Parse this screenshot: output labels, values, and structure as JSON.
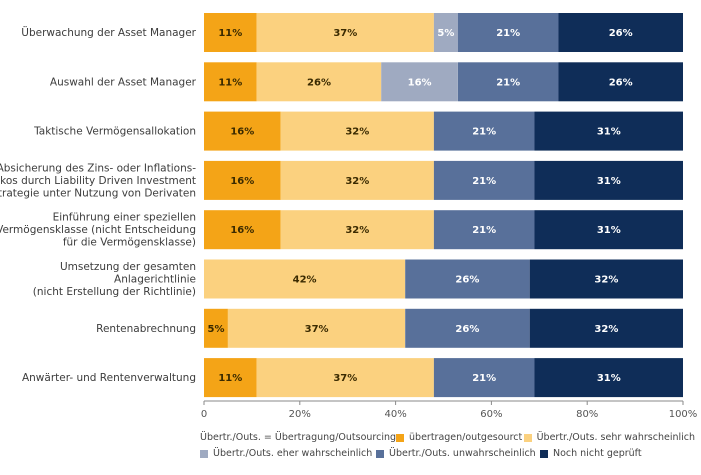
{
  "chart_data": {
    "type": "bar",
    "orientation": "horizontal",
    "stacked": true,
    "xlim": [
      0,
      100
    ],
    "xticks": [
      "0",
      "20%",
      "40%",
      "60%",
      "80%",
      "100%"
    ],
    "categories": [
      [
        "Überwachung der Asset Manager"
      ],
      [
        "Auswahl der Asset Manager"
      ],
      [
        "Taktische Vermögensallokation"
      ],
      [
        "Absicherung des Zins- oder Inflations-",
        "risikos durch Liability Driven Investment",
        "Strategie unter Nutzung von Derivaten"
      ],
      [
        "Einführung einer speziellen",
        "Vermögensklasse (nicht Entscheidung",
        "für die Vermögensklasse)"
      ],
      [
        "Umsetzung der gesamten",
        "Anlagerichtlinie",
        "(nicht Erstellung der Richtlinie)"
      ],
      [
        "Rentenabrechnung"
      ],
      [
        "Anwärter- und Rentenverwaltung"
      ]
    ],
    "series": [
      {
        "name": "übertragen/outgesourct",
        "color": "#f4a417",
        "label_color": "#3a2a00",
        "values": [
          11,
          11,
          16,
          16,
          16,
          0,
          5,
          11
        ]
      },
      {
        "name": "Übertr./Outs. sehr wahrscheinlich",
        "color": "#fbd17f",
        "label_color": "#3a2a00",
        "values": [
          37,
          26,
          32,
          32,
          32,
          42,
          37,
          37
        ]
      },
      {
        "name": "Übertr./Outs. eher wahrscheinlich",
        "color": "#9faac1",
        "label_color": "#ffffff",
        "values": [
          5,
          16,
          0,
          0,
          0,
          0,
          0,
          0
        ]
      },
      {
        "name": "Übertr./Outs. unwahrscheinlich",
        "color": "#58709a",
        "label_color": "#ffffff",
        "values": [
          21,
          21,
          21,
          21,
          21,
          26,
          26,
          21
        ]
      },
      {
        "name": "Noch nicht geprüft",
        "color": "#0f2d58",
        "label_color": "#ffffff",
        "values": [
          26,
          26,
          31,
          31,
          31,
          32,
          32,
          31
        ]
      }
    ],
    "legend_note": "Übertr./Outs. = Übertragung/Outsourcing",
    "legend_position": "bottom",
    "grid": false
  }
}
